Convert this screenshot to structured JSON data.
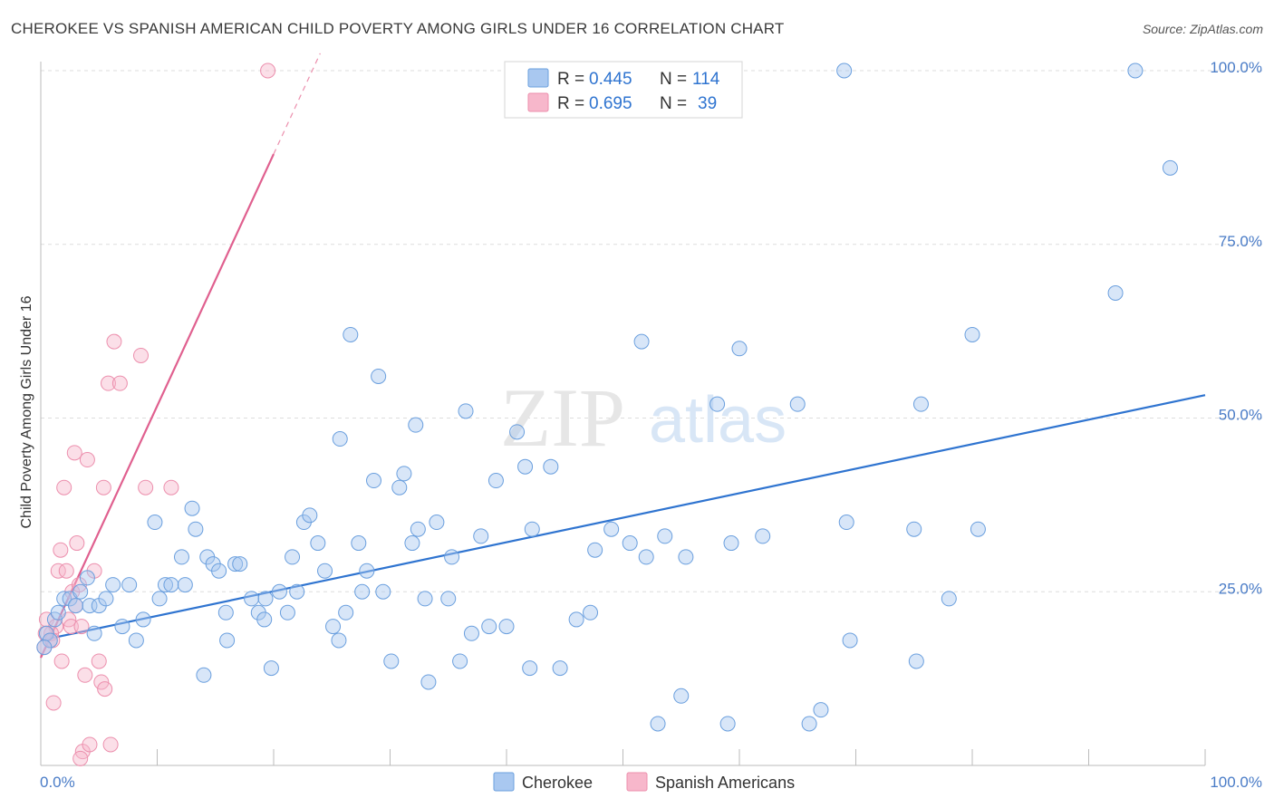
{
  "title": "CHEROKEE VS SPANISH AMERICAN CHILD POVERTY AMONG GIRLS UNDER 16 CORRELATION CHART",
  "source": "Source: ZipAtlas.com",
  "watermark": {
    "zip": "ZIP",
    "atlas": "atlas"
  },
  "colors": {
    "cherokee_fill": "#a9c8f0",
    "cherokee_stroke": "#6a9fde",
    "cherokee_line": "#2f74d0",
    "spanish_fill": "#f7b7cb",
    "spanish_stroke": "#ec8fad",
    "spanish_line": "#e0608f",
    "tick_label": "#4a7cc7",
    "grid": "#dddddd"
  },
  "legend": {
    "cherokee": {
      "r_label": "R =",
      "r_value": "0.445",
      "n_label": "N =",
      "n_value": "114"
    },
    "spanish": {
      "r_label": "R =",
      "r_value": "0.695",
      "n_label": "N =",
      "n_value": "39"
    }
  },
  "chart_data": {
    "type": "scatter",
    "title": "CHEROKEE VS SPANISH AMERICAN CHILD POVERTY AMONG GIRLS UNDER 16 CORRELATION CHART",
    "xlabel": "",
    "ylabel": "Child Poverty Among Girls Under 16",
    "xlim": [
      0,
      100
    ],
    "ylim": [
      0,
      100
    ],
    "x_tick_labels": [
      "0.0%",
      "100.0%"
    ],
    "y_ticks": [
      25,
      50,
      75,
      100
    ],
    "y_tick_labels": [
      "25.0%",
      "50.0%",
      "75.0%",
      "100.0%"
    ],
    "grid": true,
    "legend_position": "top-center",
    "series": [
      {
        "name": "Cherokee",
        "r": 0.445,
        "n": 114,
        "trend": {
          "x": [
            0,
            100
          ],
          "y": [
            18.0,
            53.3
          ]
        },
        "points": [
          [
            0.5,
            19
          ],
          [
            0.8,
            18
          ],
          [
            1.2,
            21
          ],
          [
            1.5,
            22
          ],
          [
            2.0,
            24
          ],
          [
            2.5,
            24
          ],
          [
            3.0,
            23
          ],
          [
            3.4,
            25
          ],
          [
            4.0,
            27
          ],
          [
            4.2,
            23
          ],
          [
            4.6,
            19
          ],
          [
            5.0,
            23
          ],
          [
            5.6,
            24
          ],
          [
            6.2,
            26
          ],
          [
            7.0,
            20
          ],
          [
            7.6,
            26
          ],
          [
            8.8,
            21
          ],
          [
            8.2,
            18
          ],
          [
            9.8,
            35
          ],
          [
            10.2,
            24
          ],
          [
            10.7,
            26
          ],
          [
            11.2,
            26
          ],
          [
            12.1,
            30
          ],
          [
            12.4,
            26
          ],
          [
            13.0,
            37
          ],
          [
            13.3,
            34
          ],
          [
            14.0,
            13
          ],
          [
            14.3,
            30
          ],
          [
            14.8,
            29
          ],
          [
            15.3,
            28
          ],
          [
            15.9,
            22
          ],
          [
            16.0,
            18
          ],
          [
            16.7,
            29
          ],
          [
            17.1,
            29
          ],
          [
            18.1,
            24
          ],
          [
            18.7,
            22
          ],
          [
            19.2,
            21
          ],
          [
            19.3,
            24
          ],
          [
            19.8,
            14
          ],
          [
            20.5,
            25
          ],
          [
            21.2,
            22
          ],
          [
            21.6,
            30
          ],
          [
            22.0,
            25
          ],
          [
            22.6,
            35
          ],
          [
            23.1,
            36
          ],
          [
            23.8,
            32
          ],
          [
            24.4,
            28
          ],
          [
            25.1,
            20
          ],
          [
            25.6,
            18
          ],
          [
            25.7,
            47
          ],
          [
            26.2,
            22
          ],
          [
            26.6,
            62
          ],
          [
            27.3,
            32
          ],
          [
            27.6,
            25
          ],
          [
            28.0,
            28
          ],
          [
            28.6,
            41
          ],
          [
            29.0,
            56
          ],
          [
            29.4,
            25
          ],
          [
            30.1,
            15
          ],
          [
            30.8,
            40
          ],
          [
            31.2,
            42
          ],
          [
            31.9,
            32
          ],
          [
            32.2,
            49
          ],
          [
            32.4,
            34
          ],
          [
            33.0,
            24
          ],
          [
            33.3,
            12
          ],
          [
            34.0,
            35
          ],
          [
            35.0,
            24
          ],
          [
            35.3,
            30
          ],
          [
            36.0,
            15
          ],
          [
            36.5,
            51
          ],
          [
            37.0,
            19
          ],
          [
            37.8,
            33
          ],
          [
            38.5,
            20
          ],
          [
            39.1,
            41
          ],
          [
            40.0,
            20
          ],
          [
            40.9,
            48
          ],
          [
            41.6,
            43
          ],
          [
            42.0,
            14
          ],
          [
            42.2,
            34
          ],
          [
            43.8,
            43
          ],
          [
            44.6,
            14
          ],
          [
            46.0,
            21
          ],
          [
            47.2,
            22
          ],
          [
            47.6,
            31
          ],
          [
            49.0,
            34
          ],
          [
            50.6,
            32
          ],
          [
            51.6,
            61
          ],
          [
            52.0,
            30
          ],
          [
            53.0,
            6
          ],
          [
            53.6,
            33
          ],
          [
            55.0,
            10
          ],
          [
            55.4,
            30
          ],
          [
            58.1,
            52
          ],
          [
            59.0,
            6
          ],
          [
            59.3,
            32
          ],
          [
            60.0,
            60
          ],
          [
            62.0,
            33
          ],
          [
            65.0,
            52
          ],
          [
            66.0,
            6
          ],
          [
            67.0,
            8
          ],
          [
            69.0,
            100
          ],
          [
            69.2,
            35
          ],
          [
            69.5,
            18
          ],
          [
            75.0,
            34
          ],
          [
            75.2,
            15
          ],
          [
            75.6,
            52
          ],
          [
            78.0,
            24
          ],
          [
            80.0,
            62
          ],
          [
            80.5,
            34
          ],
          [
            92.3,
            68
          ],
          [
            94.0,
            100
          ],
          [
            97.0,
            86
          ],
          [
            0.3,
            17
          ]
        ]
      },
      {
        "name": "Spanish Americans",
        "r": 0.695,
        "n": 39,
        "trend": {
          "x": [
            0,
            20
          ],
          "y": [
            15.5,
            88.0
          ]
        },
        "trend_dashed": {
          "x": [
            20,
            24
          ],
          "y": [
            88.0,
            102.5
          ]
        },
        "points": [
          [
            0.3,
            17
          ],
          [
            0.5,
            21
          ],
          [
            0.8,
            18
          ],
          [
            1.1,
            9
          ],
          [
            1.3,
            20
          ],
          [
            1.5,
            28
          ],
          [
            1.7,
            31
          ],
          [
            1.8,
            15
          ],
          [
            2.0,
            40
          ],
          [
            2.2,
            28
          ],
          [
            2.4,
            21
          ],
          [
            2.6,
            20
          ],
          [
            2.7,
            25
          ],
          [
            2.9,
            45
          ],
          [
            3.0,
            23
          ],
          [
            3.1,
            32
          ],
          [
            3.3,
            26
          ],
          [
            3.5,
            20
          ],
          [
            3.6,
            2
          ],
          [
            3.8,
            13
          ],
          [
            4.0,
            44
          ],
          [
            4.2,
            3
          ],
          [
            4.6,
            28
          ],
          [
            5.0,
            15
          ],
          [
            5.2,
            12
          ],
          [
            5.4,
            40
          ],
          [
            5.5,
            11
          ],
          [
            5.8,
            55
          ],
          [
            6.0,
            3
          ],
          [
            6.3,
            61
          ],
          [
            6.8,
            55
          ],
          [
            8.6,
            59
          ],
          [
            9.0,
            40
          ],
          [
            11.2,
            40
          ],
          [
            19.5,
            100
          ],
          [
            0.9,
            19
          ],
          [
            1.0,
            18
          ],
          [
            0.4,
            19
          ],
          [
            3.4,
            1
          ]
        ]
      }
    ]
  },
  "bottom_legend": {
    "cherokee": "Cherokee",
    "spanish": "Spanish Americans"
  }
}
